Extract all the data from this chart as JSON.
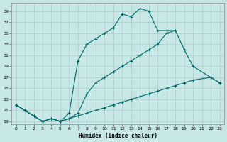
{
  "xlabel": "Humidex (Indice chaleur)",
  "bg_color": "#c8e8e8",
  "grid_color": "#b0d0d0",
  "line_color": "#006868",
  "xlim": [
    -0.5,
    23.5
  ],
  "ylim": [
    18.5,
    40.5
  ],
  "yticks": [
    19,
    21,
    23,
    25,
    27,
    29,
    31,
    33,
    35,
    37,
    39
  ],
  "xticks": [
    0,
    1,
    2,
    3,
    4,
    5,
    6,
    7,
    8,
    9,
    10,
    11,
    12,
    13,
    14,
    15,
    16,
    17,
    18,
    19,
    20,
    21,
    22,
    23
  ],
  "series": [
    {
      "x": [
        0,
        1,
        2,
        3,
        4,
        5,
        6,
        7,
        8,
        9,
        10,
        11,
        12,
        13,
        14,
        15,
        16,
        17,
        18
      ],
      "y": [
        22,
        21,
        20,
        19,
        19.5,
        19,
        20.5,
        30,
        33,
        34,
        35,
        36,
        38.5,
        38,
        39.5,
        39,
        35.5,
        35.5,
        35.5
      ]
    },
    {
      "x": [
        0,
        1,
        2,
        3,
        4,
        5,
        6,
        7,
        8,
        9,
        10,
        11,
        12,
        13,
        14,
        15,
        16,
        17,
        18,
        19,
        20,
        22,
        23
      ],
      "y": [
        22,
        21,
        20,
        19,
        19.5,
        19,
        19.5,
        20.5,
        24,
        26,
        27,
        28,
        29,
        30,
        31,
        32,
        33,
        35,
        35.5,
        32,
        29,
        27,
        26
      ]
    },
    {
      "x": [
        0,
        1,
        2,
        3,
        4,
        5,
        6,
        7,
        8,
        9,
        10,
        11,
        12,
        13,
        14,
        15,
        16,
        17,
        18,
        19,
        20,
        22,
        23
      ],
      "y": [
        22,
        21,
        20,
        19,
        19.5,
        19,
        19.5,
        20,
        20.5,
        21,
        21.5,
        22,
        22.5,
        23,
        23.5,
        24,
        24.5,
        25,
        25.5,
        26,
        26.5,
        27,
        26
      ]
    }
  ]
}
